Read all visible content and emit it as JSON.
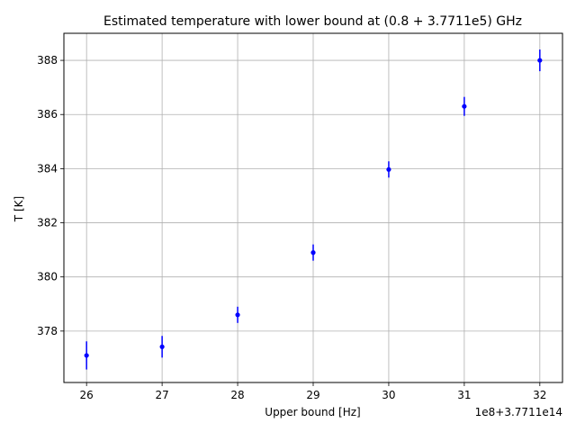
{
  "chart_data": {
    "type": "scatter",
    "title": "Estimated temperature with lower bound at (0.8 + 3.7711e5) GHz",
    "xlabel": "Upper bound [Hz]",
    "ylabel": "T [K]",
    "x_offset_label": "1e8+3.7711e14",
    "xlim": [
      25.7,
      32.3
    ],
    "ylim": [
      376.1,
      389.0
    ],
    "x_ticks": [
      26,
      27,
      28,
      29,
      30,
      31,
      32
    ],
    "x_tick_labels": [
      "26",
      "27",
      "28",
      "29",
      "30",
      "31",
      "32"
    ],
    "y_ticks": [
      378,
      380,
      382,
      384,
      386,
      388
    ],
    "y_tick_labels": [
      "378",
      "380",
      "382",
      "384",
      "386",
      "388"
    ],
    "grid": true,
    "series": [
      {
        "x": [
          26,
          27,
          28,
          29,
          30,
          31,
          32
        ],
        "y": [
          377.1,
          377.42,
          378.6,
          380.9,
          383.97,
          386.3,
          388.0
        ],
        "yerr": [
          0.52,
          0.4,
          0.3,
          0.3,
          0.3,
          0.35,
          0.4
        ],
        "color": "#0000ff"
      }
    ]
  }
}
